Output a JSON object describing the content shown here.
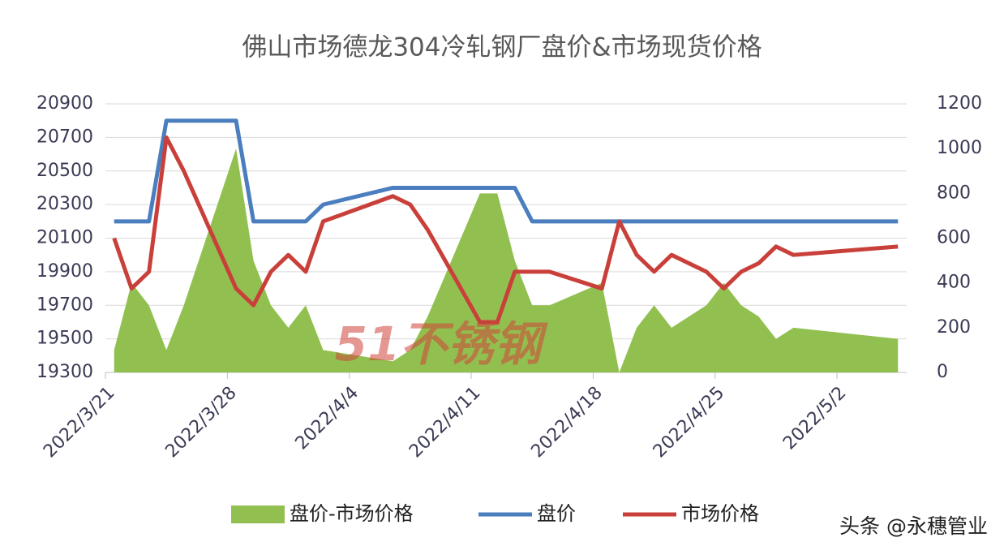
{
  "chart_data": {
    "type": "line",
    "title": "佛山市场德龙304冷轧钢厂盘价&市场现货价格",
    "watermark": "51不锈钢",
    "credit": "头条 @永穗管业",
    "x": [
      "2022/3/21",
      "2022/3/22",
      "2022/3/23",
      "2022/3/24",
      "2022/3/25",
      "2022/3/28",
      "2022/3/29",
      "2022/3/30",
      "2022/3/31",
      "2022/4/1",
      "2022/4/2",
      "2022/4/6",
      "2022/4/7",
      "2022/4/8",
      "2022/4/11",
      "2022/4/12",
      "2022/4/13",
      "2022/4/14",
      "2022/4/15",
      "2022/4/18",
      "2022/4/19",
      "2022/4/20",
      "2022/4/21",
      "2022/4/22",
      "2022/4/24",
      "2022/4/25",
      "2022/4/26",
      "2022/4/27",
      "2022/4/28",
      "2022/4/29",
      "2022/5/5"
    ],
    "xticks": [
      "2022/3/21",
      "2022/3/28",
      "2022/4/4",
      "2022/4/11",
      "2022/4/18",
      "2022/4/25",
      "2022/5/2"
    ],
    "ylim": [
      19300,
      20900
    ],
    "yticks": [
      19300,
      19500,
      19700,
      19900,
      20100,
      20300,
      20500,
      20700,
      20900
    ],
    "y2lim": [
      0,
      1200
    ],
    "y2ticks": [
      0,
      200,
      400,
      600,
      800,
      1000,
      1200
    ],
    "grid": true,
    "series": [
      {
        "name": "盘价-市场价格",
        "type": "area",
        "axis": "y2",
        "color": "#92c050",
        "values": [
          100,
          400,
          300,
          100,
          300,
          1000,
          500,
          300,
          200,
          300,
          100,
          50,
          100,
          250,
          800,
          800,
          500,
          300,
          300,
          400,
          0,
          200,
          300,
          200,
          300,
          400,
          300,
          250,
          150,
          200,
          150
        ]
      },
      {
        "name": "盘价",
        "type": "line",
        "color": "#4a7ebf",
        "values": [
          20200,
          20200,
          20200,
          20800,
          20800,
          20800,
          20200,
          20200,
          20200,
          20200,
          20300,
          20400,
          20400,
          20400,
          20400,
          20400,
          20400,
          20200,
          20200,
          20200,
          20200,
          20200,
          20200,
          20200,
          20200,
          20200,
          20200,
          20200,
          20200,
          20200,
          20200
        ]
      },
      {
        "name": "市场价格",
        "type": "line",
        "color": "#c9403a",
        "values": [
          20100,
          19800,
          19900,
          20700,
          20500,
          19800,
          19700,
          19900,
          20000,
          19900,
          20200,
          20350,
          20300,
          20150,
          19600,
          19600,
          19900,
          19900,
          19900,
          19800,
          20200,
          20000,
          19900,
          20000,
          19900,
          19800,
          19900,
          19950,
          20050,
          20000,
          20050
        ]
      }
    ]
  }
}
